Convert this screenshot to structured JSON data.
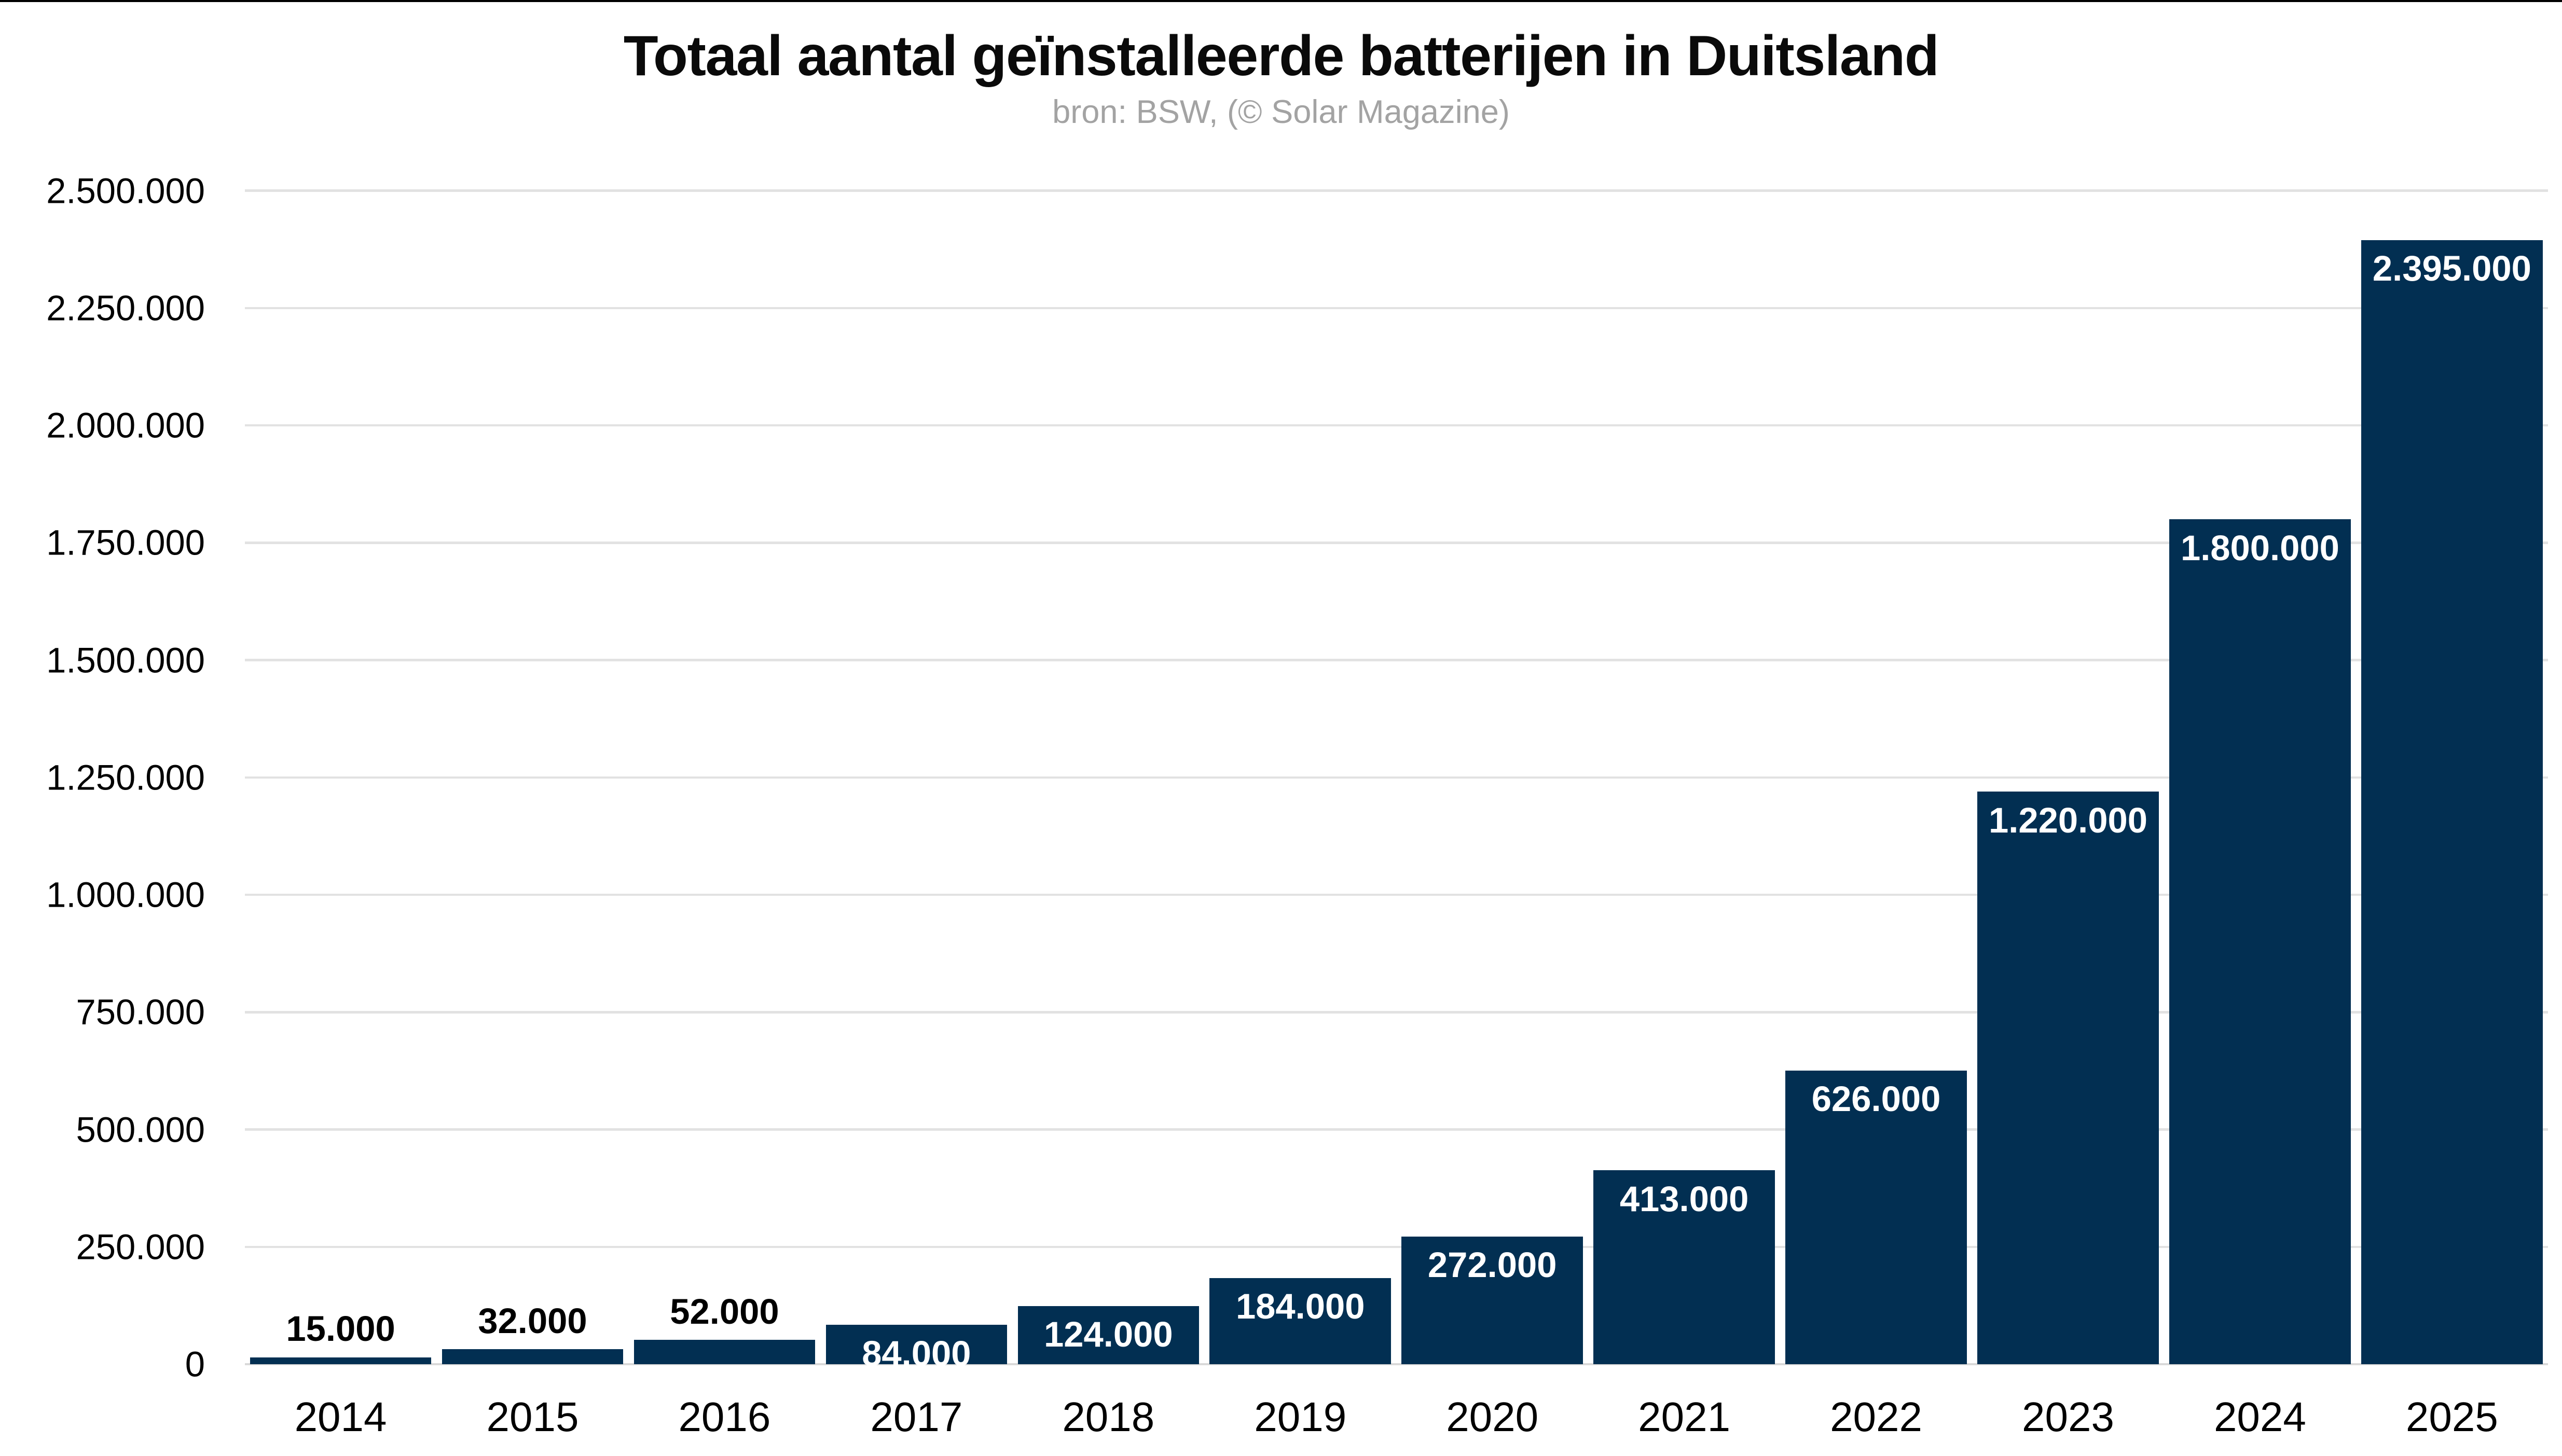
{
  "page": {
    "background": "#ffffff",
    "top_border_color": "#000000"
  },
  "chart_data": {
    "type": "bar",
    "title": "Totaal aantal geïnstalleerde batterijen in Duitsland",
    "subtitle": "bron: BSW, (© Solar Magazine)",
    "categories": [
      "2014",
      "2015",
      "2016",
      "2017",
      "2018",
      "2019",
      "2020",
      "2021",
      "2022",
      "2023",
      "2024",
      "2025"
    ],
    "values": [
      15000,
      32000,
      52000,
      84000,
      124000,
      184000,
      272000,
      413000,
      626000,
      1220000,
      1800000,
      2395000
    ],
    "bar_labels": [
      "15.000",
      "32.000",
      "52.000",
      "84.000",
      "124.000",
      "184.000",
      "272.000",
      "413.000",
      "626.000",
      "1.220.000",
      "1.800.000",
      "2.395.000"
    ],
    "bar_label_placement": [
      "above",
      "above",
      "above",
      "inside",
      "inside",
      "inside",
      "inside",
      "inside",
      "inside",
      "inside",
      "inside",
      "inside"
    ],
    "xlabel": "",
    "ylabel": "",
    "y_axis": {
      "min": 0,
      "max": 2500000,
      "tick_step": 250000,
      "tick_values": [
        0,
        250000,
        500000,
        750000,
        1000000,
        1250000,
        1500000,
        1750000,
        2000000,
        2250000,
        2500000
      ],
      "tick_labels": [
        "0",
        "250.000",
        "500.000",
        "750.000",
        "1.000.000",
        "1.250.000",
        "1.500.000",
        "1.750.000",
        "2.000.000",
        "2.250.000",
        "2.500.000"
      ]
    },
    "grid": true,
    "legend": false,
    "colors": {
      "bar": "#022f52",
      "gridline": "#e2e2e2",
      "baseline": "#d9d9d9",
      "title": "#0a0a0a",
      "subtitle": "#a3a3a3",
      "axis_text": "#000000",
      "label_inside": "#ffffff",
      "label_above": "#000000"
    }
  }
}
